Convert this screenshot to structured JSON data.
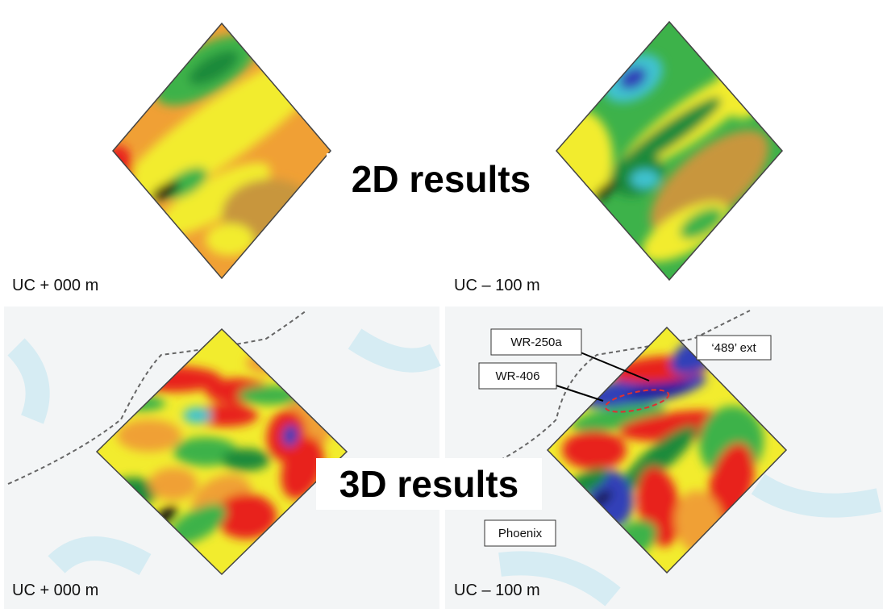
{
  "headings": {
    "two_d": "2D results",
    "three_d": "3D results"
  },
  "panels": [
    {
      "caption": "UC + 000 m"
    },
    {
      "caption": "UC – 100 m"
    },
    {
      "caption": "UC + 000 m"
    },
    {
      "caption": "UC – 100 m"
    }
  ],
  "callouts": [
    "WR-250a",
    "WR-406",
    "‘489’ ext",
    "Phoenix"
  ]
}
